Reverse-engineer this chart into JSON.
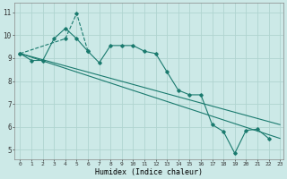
{
  "xlabel": "Humidex (Indice chaleur)",
  "background_color": "#cce9e7",
  "grid_color": "#b0d4d0",
  "line_color": "#1a7a6e",
  "xlim": [
    -0.5,
    23.3
  ],
  "ylim": [
    4.6,
    11.4
  ],
  "yticks": [
    5,
    6,
    7,
    8,
    9,
    10,
    11
  ],
  "xticks": [
    0,
    1,
    2,
    3,
    4,
    5,
    6,
    7,
    8,
    9,
    10,
    11,
    12,
    13,
    14,
    15,
    16,
    17,
    18,
    19,
    20,
    21,
    22,
    23
  ],
  "line1_x": [
    0,
    1,
    2,
    3,
    4,
    5,
    6,
    7,
    8,
    9,
    10,
    11,
    12,
    13,
    14,
    15,
    16,
    17,
    18,
    19,
    20,
    21,
    22,
    23
  ],
  "line1_y": [
    9.2,
    8.9,
    8.9,
    9.85,
    10.3,
    9.85,
    9.3,
    8.8,
    9.55,
    9.55,
    9.55,
    9.3,
    9.2,
    8.4,
    7.6,
    7.4,
    7.4,
    6.1,
    5.8,
    4.85,
    5.85,
    5.9,
    5.5,
    null
  ],
  "line2_x": [
    0,
    4,
    5,
    6
  ],
  "line2_y": [
    9.2,
    9.85,
    10.95,
    9.3
  ],
  "line3_x": [
    0,
    23
  ],
  "line3_y": [
    9.2,
    5.5
  ],
  "line4_x": [
    0,
    23
  ],
  "line4_y": [
    9.2,
    6.1
  ]
}
